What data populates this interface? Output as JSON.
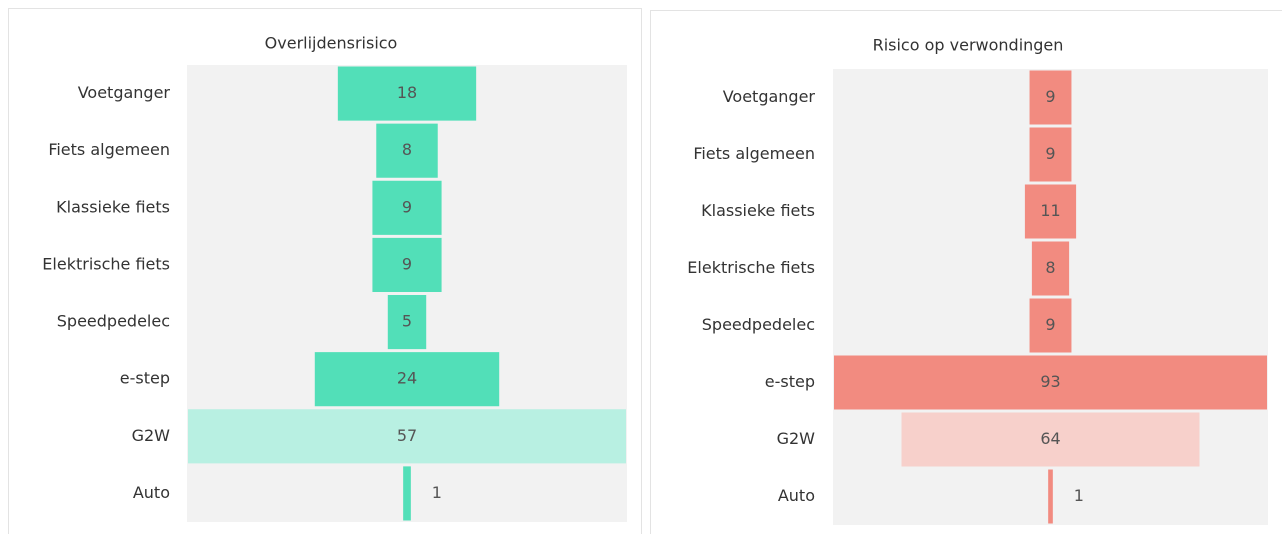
{
  "chart_data": [
    {
      "type": "funnel",
      "title": "Overlijdensrisico",
      "categories": [
        "Voetganger",
        "Fiets algemeen",
        "Klassieke fiets",
        "Elektrische fiets",
        "Speedpedelec",
        "e-step",
        "G2W",
        "Auto"
      ],
      "values": [
        18,
        8,
        9,
        9,
        5,
        24,
        57,
        1
      ],
      "colors": [
        "#52dfb8",
        "#52dfb8",
        "#52dfb8",
        "#52dfb8",
        "#52dfb8",
        "#52dfb8",
        "#b8f0e2",
        "#52dfb8"
      ]
    },
    {
      "type": "funnel",
      "title": "Risico op verwondingen",
      "categories": [
        "Voetganger",
        "Fiets algemeen",
        "Klassieke fiets",
        "Elektrische fiets",
        "Speedpedelec",
        "e-step",
        "G2W",
        "Auto"
      ],
      "values": [
        9,
        9,
        11,
        8,
        9,
        93,
        64,
        1
      ],
      "colors": [
        "#f28b80",
        "#f28b80",
        "#f28b80",
        "#f28b80",
        "#f28b80",
        "#f28b80",
        "#f7d0cb",
        "#f28b80"
      ]
    }
  ]
}
